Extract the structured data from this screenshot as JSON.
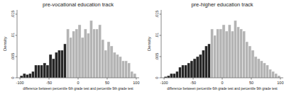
{
  "chart_data": [
    {
      "type": "histogram",
      "title": "pre-vocational education track",
      "x_label": "difference between percentile 6th grade test and percentile 9th grade test",
      "y_label": "Density",
      "bins": [
        -100,
        -95,
        -90,
        -85,
        -80,
        -75,
        -70,
        -65,
        -60,
        -55,
        -50,
        -45,
        -40,
        -35,
        -30,
        -25,
        -20,
        -15,
        -10,
        -5,
        0,
        5,
        10,
        15,
        20,
        25,
        30,
        35,
        40,
        45,
        50,
        55,
        60,
        65,
        70,
        75,
        80,
        85,
        90,
        95,
        100
      ],
      "values": [
        0.0005,
        0.001,
        0.0008,
        0.001,
        0.0015,
        0.003,
        0.003,
        0.003,
        0.0035,
        0.003,
        0.0055,
        0.0045,
        0.006,
        0.0065,
        0.0065,
        0.008,
        0.0115,
        0.0095,
        0.011,
        0.0115,
        0.0125,
        0.0095,
        0.0115,
        0.0105,
        0.0135,
        0.0115,
        0.0115,
        0.0125,
        0.009,
        0.0065,
        0.0085,
        0.0075,
        0.006,
        0.0055,
        0.005,
        0.004,
        0.004,
        0.0035,
        0.0015,
        0.001
      ],
      "colors": [
        "#262626",
        "#262626",
        "#262626",
        "#262626",
        "#262626",
        "#262626",
        "#262626",
        "#262626",
        "#262626",
        "#262626",
        "#262626",
        "#262626",
        "#262626",
        "#262626",
        "#262626",
        "#262626",
        "#b4b4b4",
        "#b4b4b4",
        "#b4b4b4",
        "#b4b4b4",
        "#b4b4b4",
        "#b4b4b4",
        "#b4b4b4",
        "#b4b4b4",
        "#b4b4b4",
        "#b4b4b4",
        "#b4b4b4",
        "#b4b4b4",
        "#b4b4b4",
        "#b4b4b4",
        "#b4b4b4",
        "#b4b4b4",
        "#b4b4b4",
        "#b4b4b4",
        "#b4b4b4",
        "#b4b4b4",
        "#b4b4b4",
        "#b4b4b4",
        "#b4b4b4",
        "#b4b4b4"
      ],
      "xlim": [
        -105,
        105
      ],
      "xticks": [
        -100,
        -50,
        0,
        50,
        100
      ],
      "ylim": [
        0,
        0.016
      ],
      "yticks": [
        {
          "value": 0,
          "label": "0"
        },
        {
          "value": 0.005,
          "label": ".005"
        },
        {
          "value": 0.01,
          "label": ".01"
        },
        {
          "value": 0.015,
          "label": ".015"
        }
      ]
    },
    {
      "type": "histogram",
      "title": "pre-higher education track",
      "x_label": "difference between percentile 6th grade test and percentile 9th grade test",
      "y_label": "Density",
      "bins": [
        -100,
        -95,
        -90,
        -85,
        -80,
        -75,
        -70,
        -65,
        -60,
        -55,
        -50,
        -45,
        -40,
        -35,
        -30,
        -25,
        -20,
        -15,
        -10,
        -5,
        0,
        5,
        10,
        15,
        20,
        25,
        30,
        35,
        40,
        45,
        50,
        55,
        60,
        65,
        70,
        75,
        80,
        85,
        90,
        95,
        100
      ],
      "values": [
        0.0003,
        0.0005,
        0.001,
        0.001,
        0.0015,
        0.0025,
        0.003,
        0.003,
        0.0035,
        0.004,
        0.0045,
        0.005,
        0.0055,
        0.0065,
        0.0075,
        0.008,
        0.0115,
        0.01,
        0.0115,
        0.0115,
        0.0125,
        0.011,
        0.0125,
        0.011,
        0.0135,
        0.012,
        0.0115,
        0.011,
        0.0085,
        0.0075,
        0.0065,
        0.005,
        0.0045,
        0.004,
        0.0035,
        0.003,
        0.002,
        0.0015,
        0.001,
        0.0005
      ],
      "colors": [
        "#262626",
        "#262626",
        "#262626",
        "#262626",
        "#262626",
        "#262626",
        "#262626",
        "#262626",
        "#262626",
        "#262626",
        "#262626",
        "#262626",
        "#262626",
        "#262626",
        "#262626",
        "#262626",
        "#b4b4b4",
        "#b4b4b4",
        "#b4b4b4",
        "#b4b4b4",
        "#b4b4b4",
        "#b4b4b4",
        "#b4b4b4",
        "#b4b4b4",
        "#b4b4b4",
        "#b4b4b4",
        "#b4b4b4",
        "#b4b4b4",
        "#b4b4b4",
        "#b4b4b4",
        "#b4b4b4",
        "#b4b4b4",
        "#b4b4b4",
        "#b4b4b4",
        "#b4b4b4",
        "#b4b4b4",
        "#b4b4b4",
        "#b4b4b4",
        "#b4b4b4",
        "#b4b4b4"
      ],
      "xlim": [
        -105,
        105
      ],
      "xticks": [
        -100,
        -50,
        0,
        50,
        100
      ],
      "ylim": [
        0,
        0.016
      ],
      "yticks": [
        {
          "value": 0,
          "label": "0"
        },
        {
          "value": 0.005,
          "label": ".005"
        },
        {
          "value": 0.01,
          "label": ".01"
        },
        {
          "value": 0.015,
          "label": ".015"
        }
      ]
    }
  ]
}
